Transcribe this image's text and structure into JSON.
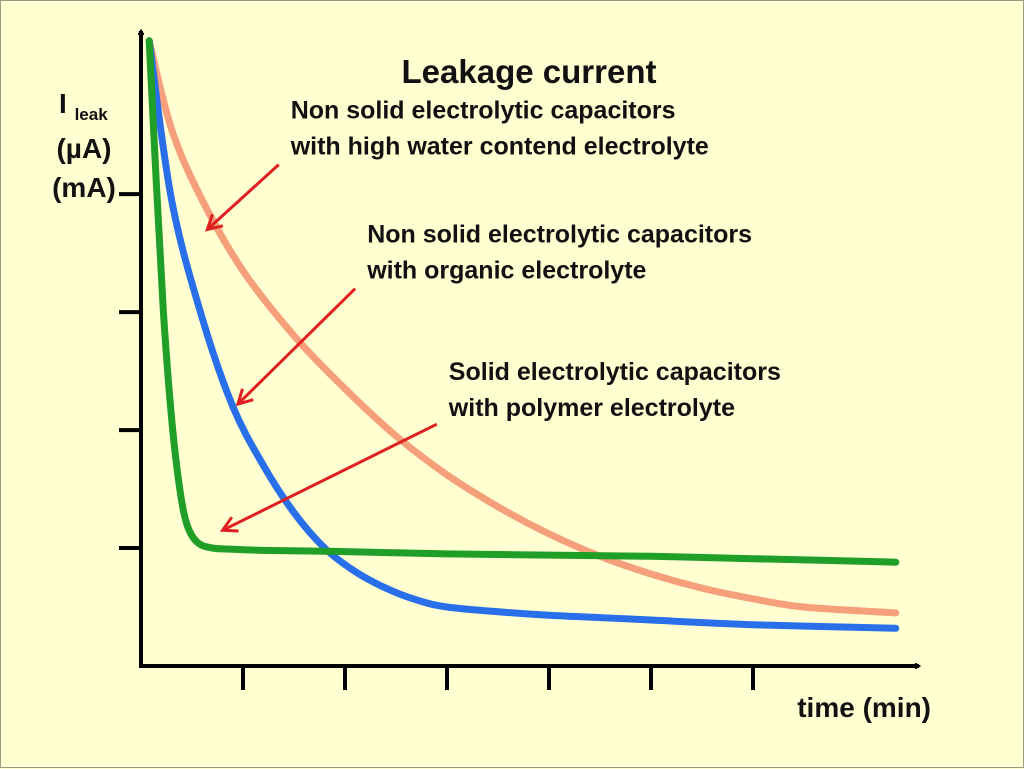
{
  "chart_data": {
    "type": "line",
    "title": "Leakage current",
    "xlabel": "time (min)",
    "ylabel": {
      "symbol": "I",
      "subscript": "leak",
      "unit1": "(µA)",
      "unit2": "(mA)"
    },
    "xlim": [
      0,
      7.5
    ],
    "ylim": [
      0,
      5.4
    ],
    "x_ticks": [
      1,
      2,
      3,
      4,
      5,
      6
    ],
    "y_ticks": [
      1,
      2,
      3,
      4
    ],
    "grid": false,
    "legend": "none",
    "series": [
      {
        "key": "high_water",
        "color": "#f5a07a",
        "x": [
          0.08,
          0.3,
          0.6,
          1.0,
          1.5,
          2.0,
          2.5,
          3.0,
          3.5,
          4.0,
          4.5,
          5.0,
          5.5,
          6.0,
          6.5,
          7.4
        ],
        "y": [
          5.3,
          4.55,
          3.95,
          3.35,
          2.8,
          2.35,
          1.95,
          1.62,
          1.35,
          1.12,
          0.93,
          0.78,
          0.66,
          0.57,
          0.5,
          0.45
        ]
      },
      {
        "key": "organic",
        "color": "#2a6fea",
        "x": [
          0.08,
          0.3,
          0.6,
          0.9,
          1.2,
          1.5,
          1.8,
          2.1,
          2.4,
          2.7,
          3.0,
          3.5,
          4.0,
          4.5,
          5.0,
          6.0,
          7.4
        ],
        "y": [
          5.3,
          3.95,
          2.95,
          2.2,
          1.7,
          1.3,
          1.0,
          0.8,
          0.66,
          0.56,
          0.5,
          0.46,
          0.43,
          0.41,
          0.39,
          0.35,
          0.32
        ]
      },
      {
        "key": "polymer",
        "color": "#1f9f28",
        "x": [
          0.08,
          0.15,
          0.22,
          0.3,
          0.38,
          0.45,
          0.55,
          0.7,
          0.9,
          1.2,
          2.0,
          3.0,
          4.0,
          5.0,
          6.0,
          7.4
        ],
        "y": [
          5.3,
          4.1,
          3.0,
          2.1,
          1.5,
          1.2,
          1.05,
          1.0,
          0.99,
          0.98,
          0.97,
          0.95,
          0.94,
          0.93,
          0.91,
          0.88
        ]
      }
    ],
    "annotations": [
      {
        "series": "high_water",
        "lines": [
          "Non solid electrolytic capacitors",
          "with high water contend electrolyte"
        ],
        "arrow_from": [
          1.35,
          4.25
        ],
        "arrow_to": [
          0.65,
          3.7
        ]
      },
      {
        "series": "organic",
        "lines": [
          "Non solid electrolytic capacitors",
          "with organic electrolyte"
        ],
        "arrow_from": [
          2.1,
          3.2
        ],
        "arrow_to": [
          0.95,
          2.22
        ]
      },
      {
        "series": "polymer",
        "lines": [
          "Solid electrolytic capacitors",
          "with polymer electrolyte"
        ],
        "arrow_from": [
          2.9,
          2.05
        ],
        "arrow_to": [
          0.8,
          1.15
        ]
      }
    ],
    "colors": {
      "axis": "#000000",
      "arrow": "#e02020",
      "background": "#ffffd2"
    }
  }
}
